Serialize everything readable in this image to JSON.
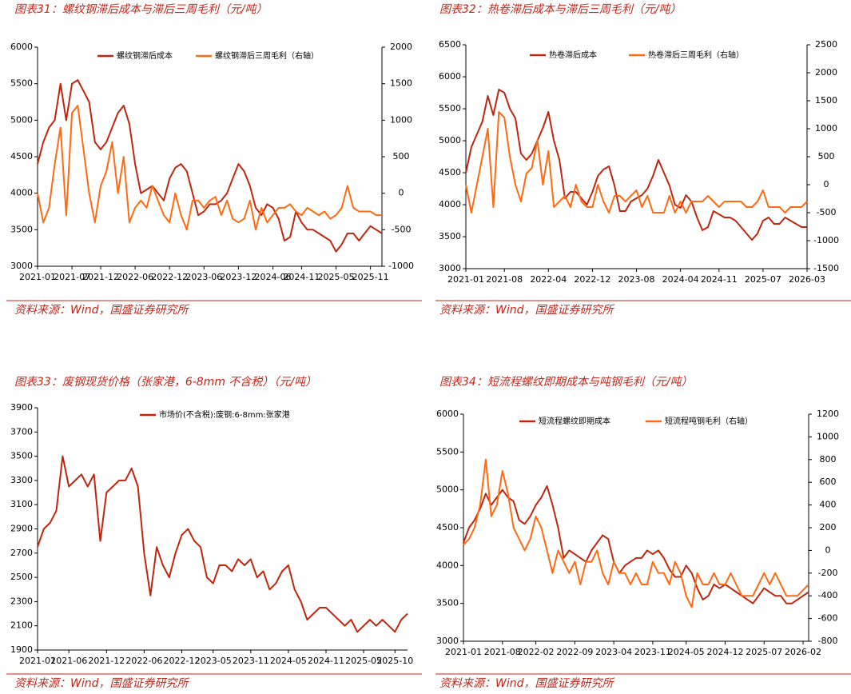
{
  "chart_data": [
    {
      "type": "line",
      "title": "图表31：螺纹钢滞后成本与滞后三周毛利（元/吨）",
      "source": "资料来源：Wind，国盛证券研究所",
      "categories": [
        "2021-01",
        "2021-02",
        "2021-03",
        "2021-04",
        "2021-05",
        "2021-06",
        "2021-07",
        "2021-08",
        "2021-09",
        "2021-10",
        "2021-11",
        "2021-12",
        "2022-01",
        "2022-02",
        "2022-03",
        "2022-04",
        "2022-05",
        "2022-06",
        "2022-07",
        "2022-08",
        "2022-09",
        "2022-10",
        "2022-11",
        "2022-12",
        "2023-01",
        "2023-02",
        "2023-03",
        "2023-04",
        "2023-05",
        "2023-06",
        "2023-07",
        "2023-08",
        "2023-09",
        "2023-10",
        "2023-11",
        "2023-12",
        "2024-01",
        "2024-02",
        "2024-03",
        "2024-04",
        "2024-05",
        "2024-06",
        "2024-07",
        "2024-08",
        "2024-09",
        "2024-10",
        "2024-11",
        "2024-12",
        "2025-01",
        "2025-02",
        "2025-03",
        "2025-04",
        "2025-05",
        "2025-06",
        "2025-07",
        "2025-08",
        "2025-09",
        "2025-10",
        "2025-11",
        "2025-12",
        "2026-01"
      ],
      "xticks": [
        "2021-01",
        "2021-07",
        "2021-12",
        "2022-06",
        "2022-12",
        "2023-06",
        "2023-12",
        "2024-06",
        "2024-11",
        "2025-05",
        "2025-11"
      ],
      "ylim": [
        3000,
        6000
      ],
      "yticks": [
        3000,
        3500,
        4000,
        4500,
        5000,
        5500,
        6000
      ],
      "y2lim": [
        -1000,
        2000
      ],
      "y2ticks": [
        -1000,
        -500,
        0,
        500,
        1000,
        1500,
        2000
      ],
      "series": [
        {
          "name": "螺纹钢滞后成本",
          "color": "#c0260f",
          "values": [
            4400,
            4700,
            4900,
            5000,
            5500,
            5000,
            5500,
            5550,
            5400,
            5250,
            4700,
            4600,
            4700,
            4900,
            5100,
            5200,
            4950,
            4400,
            4000,
            4050,
            4100,
            4000,
            3900,
            4200,
            4350,
            4400,
            4300,
            4000,
            3700,
            3750,
            3850,
            3850,
            3900,
            4000,
            4200,
            4400,
            4300,
            4100,
            3800,
            3700,
            3850,
            3800,
            3650,
            3350,
            3400,
            3750,
            3600,
            3500,
            3500,
            3450,
            3400,
            3350,
            3200,
            3300,
            3450,
            3450,
            3350,
            3450,
            3550,
            3500,
            3450
          ]
        },
        {
          "name": "螺纹钢滞后三周毛利（右轴）",
          "color": "#ff6a13",
          "axis": "y2",
          "values": [
            0,
            -400,
            -200,
            400,
            900,
            -300,
            1100,
            1200,
            600,
            0,
            -400,
            100,
            300,
            700,
            0,
            500,
            -400,
            -200,
            -100,
            -200,
            100,
            -100,
            -300,
            -400,
            0,
            -300,
            -500,
            -100,
            -100,
            -200,
            -100,
            -50,
            -300,
            -100,
            -350,
            -400,
            -350,
            -100,
            -500,
            -200,
            -400,
            -300,
            -200,
            -200,
            -150,
            -250,
            -300,
            -200,
            -250,
            -300,
            -250,
            -350,
            -300,
            -200,
            100,
            -200,
            -250,
            -250,
            -250,
            -300,
            -300
          ]
        }
      ]
    },
    {
      "type": "line",
      "title": "图表32：热卷滞后成本与滞后三周毛利（元/吨）",
      "source": "资料来源：Wind，国盛证券研究所",
      "categories": [
        "2021-01",
        "2021-02",
        "2021-03",
        "2021-04",
        "2021-05",
        "2021-06",
        "2021-07",
        "2021-08",
        "2021-09",
        "2021-10",
        "2021-11",
        "2021-12",
        "2022-01",
        "2022-02",
        "2022-03",
        "2022-04",
        "2022-05",
        "2022-06",
        "2022-07",
        "2022-08",
        "2022-09",
        "2022-10",
        "2022-11",
        "2022-12",
        "2023-01",
        "2023-02",
        "2023-03",
        "2023-04",
        "2023-05",
        "2023-06",
        "2023-07",
        "2023-08",
        "2023-09",
        "2023-10",
        "2023-11",
        "2023-12",
        "2024-01",
        "2024-02",
        "2024-03",
        "2024-04",
        "2024-05",
        "2024-06",
        "2024-07",
        "2024-08",
        "2024-09",
        "2024-10",
        "2024-11",
        "2024-12",
        "2025-01",
        "2025-02",
        "2025-03",
        "2025-04",
        "2025-05",
        "2025-06",
        "2025-07",
        "2025-08",
        "2025-09",
        "2025-10",
        "2025-11",
        "2025-12",
        "2026-01",
        "2026-02",
        "2026-03"
      ],
      "xticks": [
        "2021-01",
        "2021-08",
        "2022-04",
        "2022-12",
        "2023-08",
        "2024-04",
        "2024-11",
        "2025-07",
        "2026-03"
      ],
      "ylim": [
        3000,
        6500
      ],
      "yticks": [
        3000,
        3500,
        4000,
        4500,
        5000,
        5500,
        6000,
        6500
      ],
      "y2lim": [
        -1500,
        2500
      ],
      "y2ticks": [
        -1500,
        -1000,
        -500,
        0,
        500,
        1000,
        1500,
        2000,
        2500
      ],
      "series": [
        {
          "name": "热卷滞后成本",
          "color": "#c0260f",
          "values": [
            4500,
            4900,
            5100,
            5300,
            5700,
            5400,
            5800,
            5750,
            5500,
            5350,
            4800,
            4700,
            4800,
            5000,
            5200,
            5450,
            5000,
            4700,
            4100,
            4200,
            4200,
            4100,
            4000,
            4200,
            4450,
            4550,
            4600,
            4300,
            3900,
            3900,
            4050,
            4100,
            4150,
            4250,
            4450,
            4700,
            4500,
            4300,
            4000,
            3950,
            4150,
            4050,
            3800,
            3600,
            3650,
            3900,
            3850,
            3800,
            3800,
            3750,
            3650,
            3550,
            3450,
            3550,
            3750,
            3800,
            3700,
            3700,
            3800,
            3750,
            3700,
            3650,
            3650
          ]
        },
        {
          "name": "热卷滞后三周毛利（右轴）",
          "color": "#ff6a13",
          "axis": "y2",
          "values": [
            0,
            -500,
            0,
            500,
            1000,
            -400,
            1300,
            1200,
            500,
            0,
            -300,
            200,
            300,
            800,
            0,
            600,
            -400,
            -300,
            -200,
            -400,
            0,
            -300,
            -400,
            -400,
            0,
            -300,
            -500,
            -200,
            -200,
            -300,
            -200,
            -100,
            -400,
            -200,
            -500,
            -500,
            -500,
            -200,
            -500,
            -300,
            -500,
            -300,
            -300,
            -300,
            -200,
            -300,
            -400,
            -300,
            -300,
            -300,
            -300,
            -400,
            -400,
            -300,
            -100,
            -400,
            -400,
            -400,
            -500,
            -400,
            -400,
            -400,
            -300
          ]
        }
      ]
    },
    {
      "type": "line",
      "title": "图表33：废钢现货价格（张家港，6-8mm 不含税）（元/吨）",
      "source": "资料来源：Wind，国盛证券研究所",
      "categories": [
        "2021-01",
        "2021-02",
        "2021-03",
        "2021-04",
        "2021-05",
        "2021-06",
        "2021-07",
        "2021-08",
        "2021-09",
        "2021-10",
        "2021-11",
        "2021-12",
        "2022-01",
        "2022-02",
        "2022-03",
        "2022-04",
        "2022-05",
        "2022-06",
        "2022-07",
        "2022-08",
        "2022-09",
        "2022-10",
        "2022-11",
        "2022-12",
        "2023-01",
        "2023-02",
        "2023-03",
        "2023-04",
        "2023-05",
        "2023-06",
        "2023-07",
        "2023-08",
        "2023-09",
        "2023-10",
        "2023-11",
        "2023-12",
        "2024-01",
        "2024-02",
        "2024-03",
        "2024-04",
        "2024-05",
        "2024-06",
        "2024-07",
        "2024-08",
        "2024-09",
        "2024-10",
        "2024-11",
        "2024-12",
        "2025-01",
        "2025-02",
        "2025-03",
        "2025-04",
        "2025-05",
        "2025-06",
        "2025-07",
        "2025-08",
        "2025-09",
        "2025-10",
        "2025-11",
        "2025-12"
      ],
      "xticks": [
        "2021-01",
        "2021-06",
        "2021-12",
        "2022-06",
        "2022-12",
        "2023-05",
        "2023-11",
        "2024-05",
        "2024-11",
        "2025-05",
        "2025-10"
      ],
      "ylim": [
        1900,
        3900
      ],
      "yticks": [
        1900,
        2100,
        2300,
        2500,
        2700,
        2900,
        3100,
        3300,
        3500,
        3700,
        3900
      ],
      "series": [
        {
          "name": "市场价(不含税):废钢:6-8mm:张家港",
          "color": "#c0260f",
          "values": [
            2750,
            2900,
            2950,
            3050,
            3500,
            3250,
            3300,
            3350,
            3250,
            3350,
            2800,
            3200,
            3250,
            3300,
            3300,
            3400,
            3250,
            2700,
            2350,
            2750,
            2600,
            2500,
            2700,
            2850,
            2900,
            2800,
            2750,
            2500,
            2450,
            2600,
            2600,
            2550,
            2650,
            2600,
            2650,
            2500,
            2550,
            2400,
            2450,
            2550,
            2600,
            2400,
            2300,
            2150,
            2200,
            2250,
            2250,
            2200,
            2150,
            2100,
            2150,
            2050,
            2100,
            2150,
            2100,
            2150,
            2100,
            2050,
            2150,
            2200
          ]
        }
      ]
    },
    {
      "type": "line",
      "title": "图表34：短流程螺纹即期成本与吨钢毛利（元/吨）",
      "source": "资料来源：Wind，国盛证券研究所",
      "categories": [
        "2021-01",
        "2021-02",
        "2021-03",
        "2021-04",
        "2021-05",
        "2021-06",
        "2021-07",
        "2021-08",
        "2021-09",
        "2021-10",
        "2021-11",
        "2021-12",
        "2022-01",
        "2022-02",
        "2022-03",
        "2022-04",
        "2022-05",
        "2022-06",
        "2022-07",
        "2022-08",
        "2022-09",
        "2022-10",
        "2022-11",
        "2022-12",
        "2023-01",
        "2023-02",
        "2023-03",
        "2023-04",
        "2023-05",
        "2023-06",
        "2023-07",
        "2023-08",
        "2023-09",
        "2023-10",
        "2023-11",
        "2023-12",
        "2024-01",
        "2024-02",
        "2024-03",
        "2024-04",
        "2024-05",
        "2024-06",
        "2024-07",
        "2024-08",
        "2024-09",
        "2024-10",
        "2024-11",
        "2024-12",
        "2025-01",
        "2025-02",
        "2025-03",
        "2025-04",
        "2025-05",
        "2025-06",
        "2025-07",
        "2025-08",
        "2025-09",
        "2025-10",
        "2025-11",
        "2025-12",
        "2026-01",
        "2026-02",
        "2026-03"
      ],
      "xticks": [
        "2021-01",
        "2021-08",
        "2022-02",
        "2022-09",
        "2023-04",
        "2023-11",
        "2024-05",
        "2024-12",
        "2025-07",
        "2026-02"
      ],
      "ylim": [
        3000,
        6000
      ],
      "yticks": [
        3000,
        3500,
        4000,
        4500,
        5000,
        5500,
        6000
      ],
      "y2lim": [
        -800,
        1200
      ],
      "y2ticks": [
        -800,
        -600,
        -400,
        -200,
        0,
        200,
        400,
        600,
        800,
        1000,
        1200
      ],
      "series": [
        {
          "name": "短流程螺纹即期成本",
          "color": "#c0260f",
          "values": [
            4300,
            4500,
            4600,
            4750,
            4950,
            4800,
            4900,
            5000,
            4900,
            4850,
            4600,
            4550,
            4650,
            4800,
            4900,
            5050,
            4800,
            4500,
            4100,
            4200,
            4150,
            4100,
            4050,
            4200,
            4300,
            4400,
            4350,
            4050,
            3900,
            4000,
            4050,
            4100,
            4100,
            4200,
            4150,
            4200,
            4100,
            3950,
            3850,
            3850,
            4000,
            3900,
            3700,
            3550,
            3600,
            3750,
            3700,
            3750,
            3700,
            3650,
            3600,
            3550,
            3500,
            3600,
            3700,
            3650,
            3600,
            3600,
            3500,
            3500,
            3550,
            3600,
            3650
          ]
        },
        {
          "name": "短流程吨钢毛利（右轴）",
          "color": "#ff6a13",
          "axis": "y2",
          "values": [
            50,
            100,
            200,
            400,
            800,
            300,
            400,
            700,
            500,
            200,
            100,
            0,
            100,
            300,
            200,
            0,
            -200,
            0,
            -100,
            -200,
            -100,
            -300,
            -100,
            -100,
            0,
            -200,
            -300,
            -100,
            -200,
            -200,
            -300,
            -200,
            -300,
            -300,
            -100,
            -200,
            -200,
            -300,
            -100,
            -200,
            -400,
            -500,
            -200,
            -300,
            -300,
            -200,
            -300,
            -300,
            -200,
            -300,
            -400,
            -400,
            -400,
            -300,
            -200,
            -300,
            -200,
            -300,
            -400,
            -400,
            -400,
            -350,
            -300
          ]
        }
      ]
    }
  ]
}
